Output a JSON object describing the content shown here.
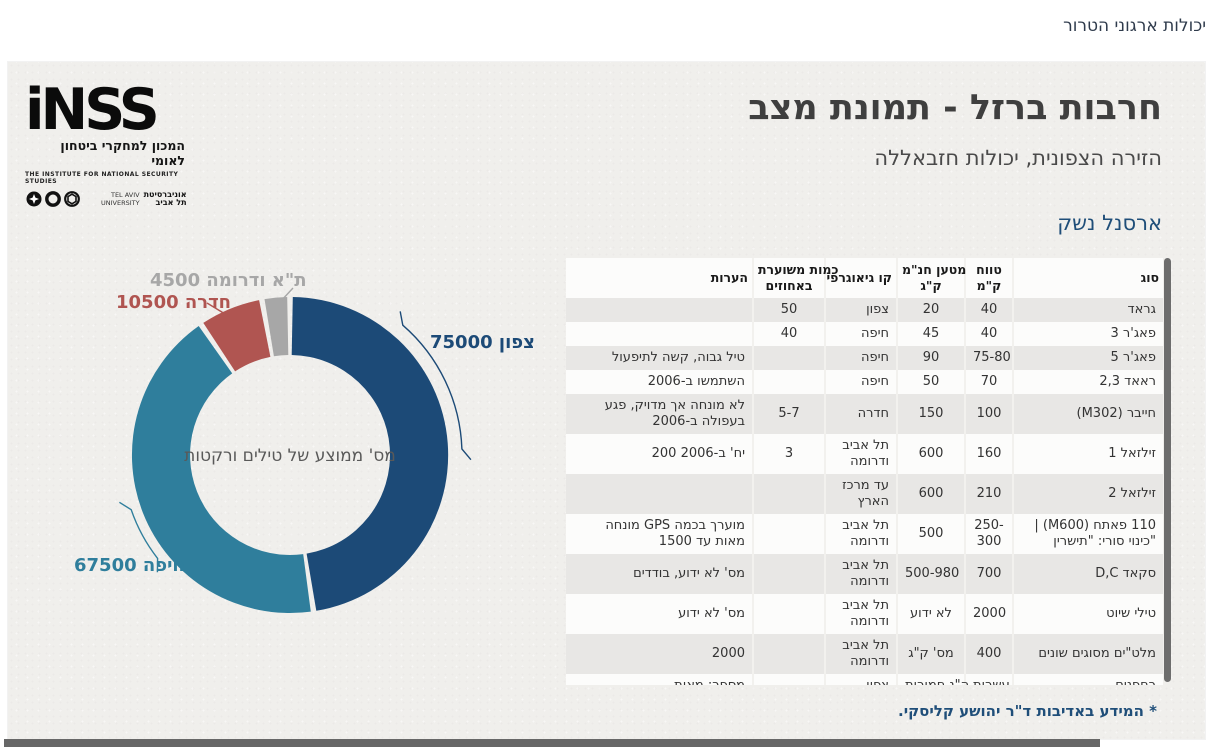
{
  "theme": {
    "accent": "#1F4E79",
    "slide_bg": "#f0efec",
    "bar_color": "#676767"
  },
  "page": {
    "breadcrumb": "יכולות ארגוני הטרור"
  },
  "logo": {
    "wordmark": "iNSS",
    "name_he": "המכון למחקרי ביטחון לאומי",
    "name_en": "THE INSTITUTE FOR NATIONAL SECURITY STUDIES",
    "univ_he1": "אוניברסיטת",
    "univ_he2": "תל אביב",
    "univ_en1": "TEL AVIV",
    "univ_en2": "UNIVERSITY"
  },
  "header": {
    "title": "חרבות ברזל - תמונת מצב",
    "subtitle": "הזירה הצפונית, יכולות חזבאללה",
    "section_title": "ארסנל נשק"
  },
  "chart_data": {
    "type": "pie",
    "variant": "donut",
    "center_label": "מס' ממוצע של טילים ורקטות",
    "start_angle_deg": 0,
    "direction": "clockwise",
    "total": 157500,
    "slices": [
      {
        "label": "צפון",
        "value": 75000,
        "color": "#1C4A77"
      },
      {
        "label": "חיפה",
        "value": 67500,
        "color": "#2F7E9C"
      },
      {
        "label": "חדרה",
        "value": 10500,
        "color": "#B05551"
      },
      {
        "label": "ת\"א ודרומה",
        "value": 4500,
        "color": "#A7A7A7"
      }
    ]
  },
  "arsenal_table": {
    "columns": [
      "סוג",
      "טווח\nק\"מ",
      "מטען חנ\"מ\nק\"ג",
      "קו גיאוגרפי",
      "כמות משוערת\nבאחוזים",
      "הערות"
    ],
    "rows": [
      [
        "גראד",
        "40",
        "20",
        "צפון",
        "50",
        ""
      ],
      [
        "פאג'ר 3",
        "40",
        "45",
        "חיפה",
        "40",
        ""
      ],
      [
        "פאג'ר 5",
        "75-80",
        "90",
        "חיפה",
        "",
        "טיל גבוה, קשה לתיפעול"
      ],
      [
        "ראאד 2,3",
        "70",
        "50",
        "חיפה",
        "",
        "השתמשו ב-2006"
      ],
      [
        "חייבר (M302)",
        "100",
        "150",
        "חדרה",
        "5-7",
        "לא מונחה אך מדויק, פגע\nבעפולה ב-2006"
      ],
      [
        "זילזאל 1",
        "160",
        "600",
        "תל אביב\nודרומה",
        "3",
        "יח' ב-2006 200"
      ],
      [
        "זילזאל 2",
        "210",
        "600",
        "עד מרכז\nהארץ",
        "",
        ""
      ],
      [
        "110 פאתח (M600) |\n\"כינוי סורי: \"תישרין",
        "250-\n300",
        "500",
        "תל אביב\nודרומה",
        "",
        "מוערך בכמה GPS מונחה\nמאות עד 1500"
      ],
      [
        "סקאד D,C",
        "700",
        "500-980",
        "תל אביב\nודרומה",
        "",
        "מס' לא ידוע, בודדים"
      ],
      [
        "טילי שיוט",
        "2000",
        "לא ידוע",
        "תל אביב\nודרומה",
        "",
        "מס' לא ידוע"
      ],
      [
        "מלט\"ים מסוגים שונים",
        "400",
        "מס' ק\"ג",
        "תל אביב\nודרומה",
        "",
        "2000"
      ],
      [
        "רחפנים",
        "עשרות",
        "ה\"נ חמורות",
        "צפון",
        "",
        "מספר: מאות"
      ]
    ]
  },
  "footer": {
    "credit": "* המידע באדיבות ד\"ר יהושע קליסקי."
  }
}
